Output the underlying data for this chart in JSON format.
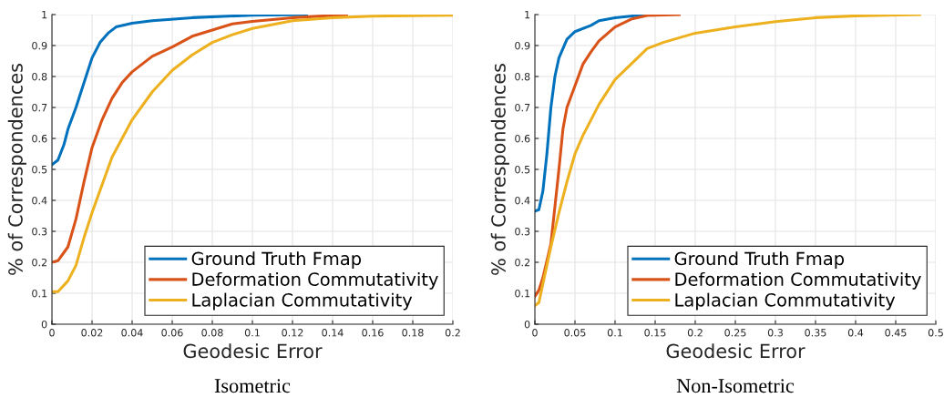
{
  "chart_data": [
    {
      "type": "line",
      "title": "Isometric",
      "xlabel": "Geodesic Error",
      "ylabel": "% of Correspondences",
      "xlim": [
        0,
        0.2
      ],
      "xticks": [
        0,
        0.02,
        0.04,
        0.06,
        0.08,
        0.1,
        0.12,
        0.14,
        0.16,
        0.18,
        0.2
      ],
      "ylim": [
        0,
        1
      ],
      "yticks": [
        0,
        0.1,
        0.2,
        0.3,
        0.4,
        0.5,
        0.6,
        0.7,
        0.8,
        0.9,
        1
      ],
      "grid": true,
      "legend": "bottom right",
      "line_style": "solid",
      "series": [
        {
          "name": "Ground Truth Fmap",
          "color": "#0072bd",
          "x": [
            0,
            0.003,
            0.006,
            0.008,
            0.012,
            0.016,
            0.02,
            0.024,
            0.028,
            0.032,
            0.04,
            0.05,
            0.07,
            0.1,
            0.127
          ],
          "values": [
            0.515,
            0.53,
            0.58,
            0.63,
            0.7,
            0.78,
            0.86,
            0.91,
            0.94,
            0.96,
            0.972,
            0.98,
            0.99,
            0.998,
            1
          ]
        },
        {
          "name": "Deformation Commutativity",
          "color": "#d95319",
          "x": [
            0,
            0.003,
            0.008,
            0.012,
            0.016,
            0.02,
            0.025,
            0.03,
            0.035,
            0.04,
            0.05,
            0.06,
            0.07,
            0.08,
            0.09,
            0.1,
            0.12,
            0.147
          ],
          "values": [
            0.2,
            0.205,
            0.25,
            0.34,
            0.46,
            0.57,
            0.66,
            0.73,
            0.78,
            0.815,
            0.865,
            0.895,
            0.93,
            0.95,
            0.97,
            0.978,
            0.99,
            1
          ]
        },
        {
          "name": "Laplacian Commutativity",
          "color": "#edb120",
          "x": [
            0,
            0.003,
            0.008,
            0.012,
            0.016,
            0.02,
            0.025,
            0.03,
            0.035,
            0.04,
            0.05,
            0.06,
            0.07,
            0.08,
            0.09,
            0.1,
            0.12,
            0.14,
            0.16,
            0.2
          ],
          "values": [
            0.105,
            0.105,
            0.14,
            0.19,
            0.28,
            0.36,
            0.45,
            0.54,
            0.6,
            0.66,
            0.75,
            0.82,
            0.87,
            0.91,
            0.935,
            0.955,
            0.98,
            0.99,
            0.995,
            0.998
          ]
        }
      ]
    },
    {
      "type": "line",
      "title": "Non-Isometric",
      "xlabel": "Geodesic Error",
      "ylabel": "% of Correspondences",
      "xlim": [
        0,
        0.5
      ],
      "xticks": [
        0,
        0.05,
        0.1,
        0.15,
        0.2,
        0.25,
        0.3,
        0.35,
        0.4,
        0.45,
        0.5
      ],
      "ylim": [
        0,
        1
      ],
      "yticks": [
        0,
        0.1,
        0.2,
        0.3,
        0.4,
        0.5,
        0.6,
        0.7,
        0.8,
        0.9,
        1
      ],
      "grid": true,
      "legend": "bottom right",
      "line_style": "solid",
      "series": [
        {
          "name": "Ground Truth Fmap",
          "color": "#0072bd",
          "x": [
            0,
            0.005,
            0.01,
            0.015,
            0.02,
            0.025,
            0.03,
            0.04,
            0.05,
            0.07,
            0.08,
            0.1,
            0.14
          ],
          "values": [
            0.365,
            0.37,
            0.43,
            0.55,
            0.7,
            0.8,
            0.86,
            0.92,
            0.945,
            0.965,
            0.98,
            0.99,
            1
          ]
        },
        {
          "name": "Deformation Commutativity",
          "color": "#d95319",
          "x": [
            0,
            0.005,
            0.01,
            0.02,
            0.03,
            0.035,
            0.04,
            0.05,
            0.06,
            0.07,
            0.08,
            0.1,
            0.12,
            0.14,
            0.18
          ],
          "values": [
            0.09,
            0.11,
            0.15,
            0.26,
            0.5,
            0.63,
            0.7,
            0.77,
            0.84,
            0.88,
            0.915,
            0.96,
            0.985,
            0.997,
            1
          ]
        },
        {
          "name": "Laplacian Commutativity",
          "color": "#edb120",
          "x": [
            0,
            0.005,
            0.01,
            0.02,
            0.03,
            0.04,
            0.05,
            0.06,
            0.07,
            0.08,
            0.1,
            0.12,
            0.14,
            0.16,
            0.2,
            0.25,
            0.3,
            0.35,
            0.4,
            0.48
          ],
          "values": [
            0.06,
            0.07,
            0.13,
            0.25,
            0.36,
            0.46,
            0.55,
            0.61,
            0.66,
            0.71,
            0.79,
            0.84,
            0.89,
            0.91,
            0.94,
            0.96,
            0.977,
            0.99,
            0.996,
            1
          ]
        }
      ]
    }
  ]
}
